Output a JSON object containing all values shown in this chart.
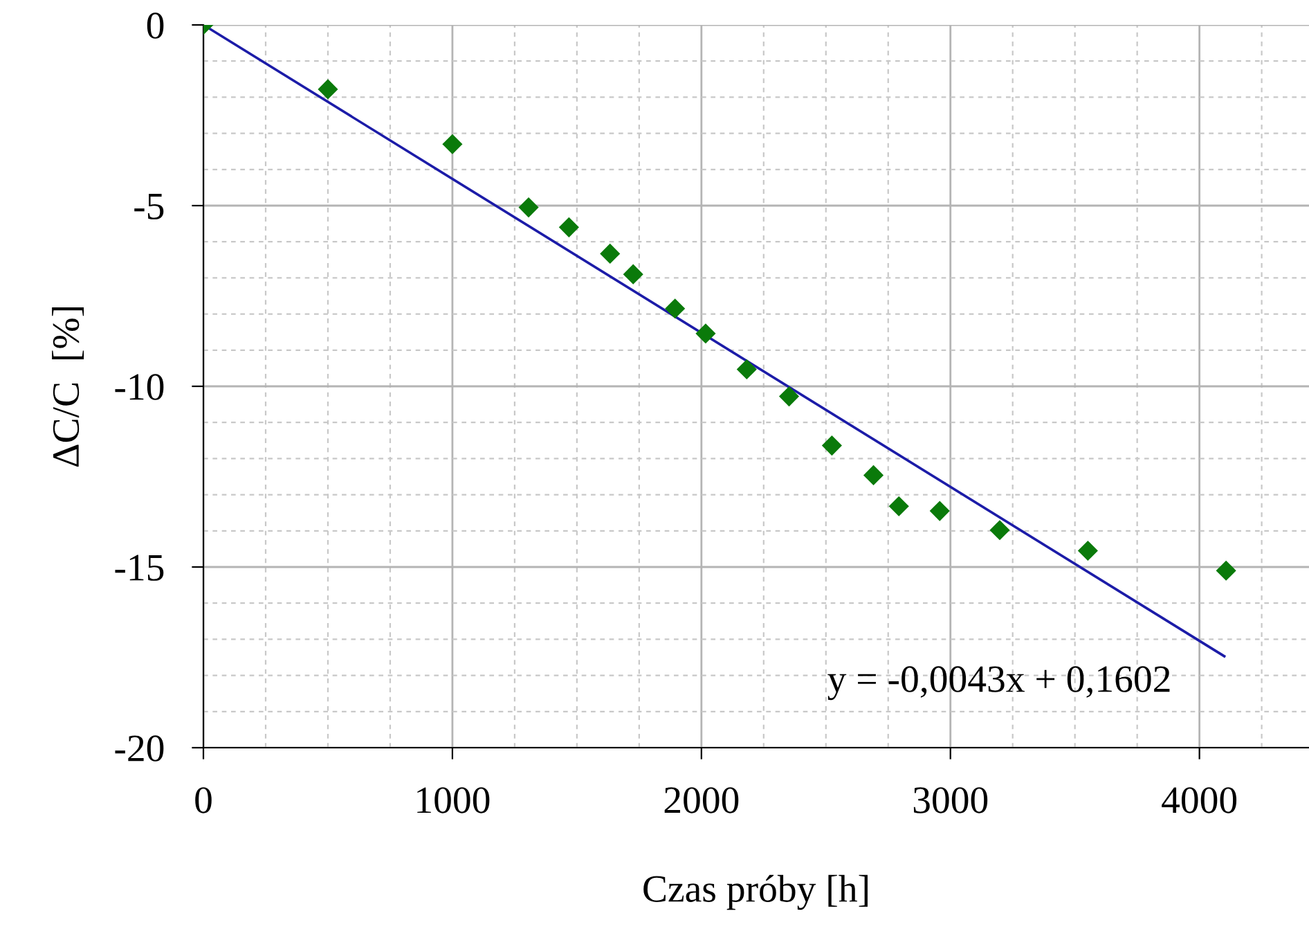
{
  "chart_data": {
    "type": "scatter",
    "xlabel": "Czas próby [h]",
    "ylabel": "ΔC/C  [%]",
    "series": [
      {
        "color": "#0a7a0a",
        "marker": "diamond",
        "x": [
          0,
          500,
          1000,
          1306,
          1468,
          1633,
          1726,
          1894,
          2017,
          2182,
          2352,
          2524,
          2691,
          2793,
          2957,
          3198,
          3552,
          4107
        ],
        "values": [
          0,
          -1.78,
          -3.3,
          -5.05,
          -5.6,
          -6.33,
          -6.9,
          -7.85,
          -8.54,
          -9.53,
          -10.28,
          -11.64,
          -12.46,
          -13.32,
          -13.45,
          -13.98,
          -14.55,
          -15.1
        ]
      },
      {
        "type": "line",
        "color": "#1c1ca8",
        "marker": "none",
        "line_style": "solid",
        "x": [
          0,
          4100
        ],
        "values": [
          0,
          -17.47
        ]
      }
    ],
    "xlim": [
      0,
      4440
    ],
    "ylim": [
      -20,
      0
    ],
    "xticks": [
      0,
      {
        "value": 250,
        "label": null
      },
      {
        "value": 500,
        "label": null
      },
      {
        "value": 750,
        "label": null
      },
      1000,
      {
        "value": 1250,
        "label": null
      },
      {
        "value": 1500,
        "label": null
      },
      {
        "value": 1750,
        "label": null
      },
      2000,
      {
        "value": 2250,
        "label": null
      },
      {
        "value": 2500,
        "label": null
      },
      {
        "value": 2750,
        "label": null
      },
      3000,
      {
        "value": 3250,
        "label": null
      },
      {
        "value": 3500,
        "label": null
      },
      {
        "value": 3750,
        "label": null
      },
      4000,
      {
        "value": 4250,
        "label": null
      }
    ],
    "yticks": [
      -20,
      {
        "value": -19,
        "label": null
      },
      {
        "value": -18,
        "label": null
      },
      {
        "value": -17,
        "label": null
      },
      {
        "value": -16,
        "label": null
      },
      -15,
      {
        "value": -14,
        "label": null
      },
      {
        "value": -13,
        "label": null
      },
      {
        "value": -12,
        "label": null
      },
      {
        "value": -11,
        "label": null
      },
      -10,
      {
        "value": -9,
        "label": null
      },
      {
        "value": -8,
        "label": null
      },
      {
        "value": -7,
        "label": null
      },
      {
        "value": -6,
        "label": null
      },
      -5,
      {
        "value": -4,
        "label": null
      },
      {
        "value": -3,
        "label": null
      },
      {
        "value": -2,
        "label": null
      },
      {
        "value": -1,
        "label": null
      },
      0
    ],
    "grid": true,
    "annotations": [
      "y = -0,0043x + 0,1602"
    ]
  }
}
